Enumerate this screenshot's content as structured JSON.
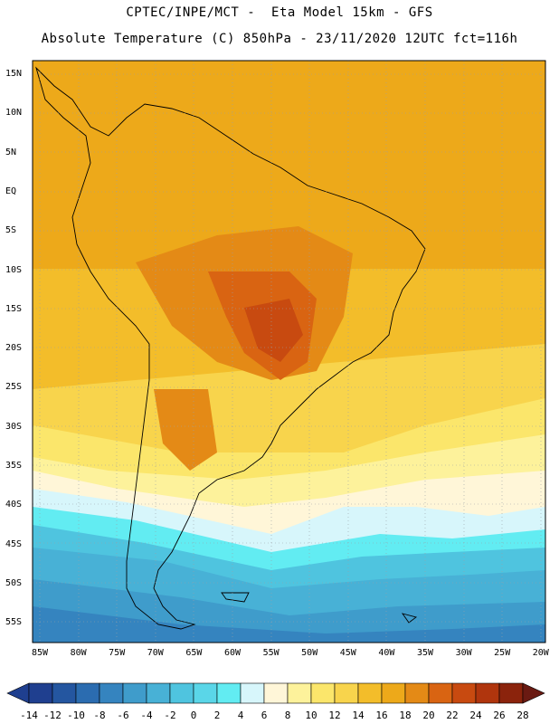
{
  "title_line1": "CPTEC/INPE/MCT -  Eta Model 15km - GFS",
  "title_line2": "Absolute Temperature (C) 850hPa - 23/11/2020 12UTC fct=116h",
  "lat_labels": [
    "15N",
    "10N",
    "5N",
    "EQ",
    "5S",
    "10S",
    "15S",
    "20S",
    "25S",
    "30S",
    "35S",
    "40S",
    "45S",
    "50S",
    "55S"
  ],
  "lon_labels": [
    "85W",
    "80W",
    "75W",
    "70W",
    "65W",
    "60W",
    "55W",
    "50W",
    "45W",
    "40W",
    "35W",
    "30W",
    "25W",
    "20W"
  ],
  "colorbar": {
    "ticks": [
      "-14",
      "-12",
      "-10",
      "-8",
      "-6",
      "-4",
      "-2",
      "0",
      "2",
      "4",
      "6",
      "8",
      "10",
      "12",
      "14",
      "16",
      "18",
      "20",
      "22",
      "24",
      "26",
      "28"
    ],
    "colors": [
      "#1f3f8f",
      "#2456a0",
      "#2b6cb0",
      "#3584bf",
      "#3f9ccb",
      "#48b1d6",
      "#4fc4df",
      "#5ad6e8",
      "#62ecf2",
      "#d7f6fb",
      "#fff6d8",
      "#fdf29b",
      "#fbe66b",
      "#f8d44c",
      "#f3bd2a",
      "#eda91a",
      "#e48a16",
      "#d96412",
      "#c84a10",
      "#b0350d",
      "#8b230c",
      "#6a1a12"
    ]
  }
}
